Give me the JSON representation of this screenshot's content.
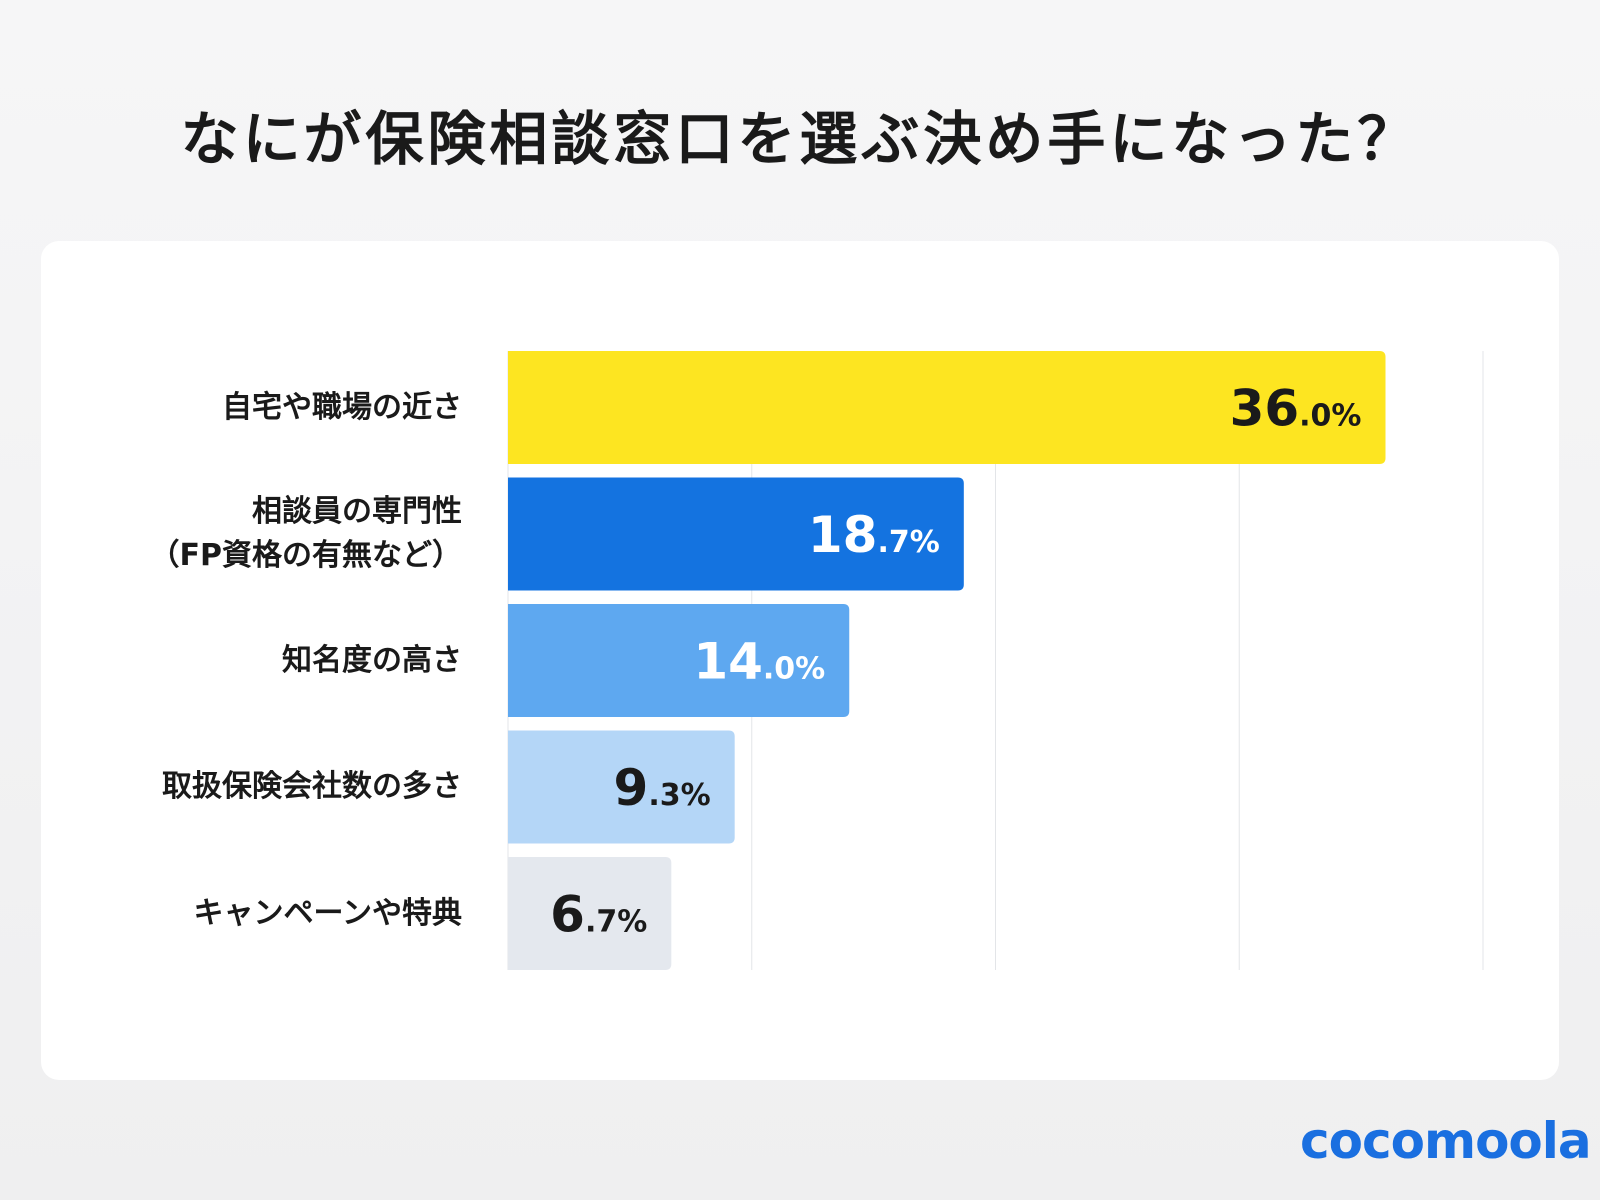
{
  "title": "なにが保険相談窓口を選ぶ決め手になった？",
  "logo": "cocomoola",
  "chart_data": {
    "type": "bar",
    "orientation": "horizontal",
    "title": "なにが保険相談窓口を選ぶ決め手になった？",
    "categories": [
      "自宅や職場の近さ",
      "相談員の専門性\n（FP資格の有無など）",
      "知名度の高さ",
      "取扱保険会社数の多さ",
      "キャンペーンや特典"
    ],
    "values": [
      36.0,
      18.7,
      14.0,
      9.3,
      6.7
    ],
    "labels": [
      "36.0%",
      "18.7%",
      "14.0%",
      "9.3%",
      "6.7%"
    ],
    "colors": [
      "#fde521",
      "#1473e0",
      "#5ea8f0",
      "#b4d6f7",
      "#e4e8ee"
    ],
    "label_colors": [
      "#1a1a1a",
      "#ffffff",
      "#ffffff",
      "#1a1a1a",
      "#1a1a1a"
    ],
    "xlim": [
      0,
      40
    ],
    "grid": true,
    "gridlines": [
      0,
      10,
      20,
      30,
      40
    ],
    "unit": "%"
  }
}
